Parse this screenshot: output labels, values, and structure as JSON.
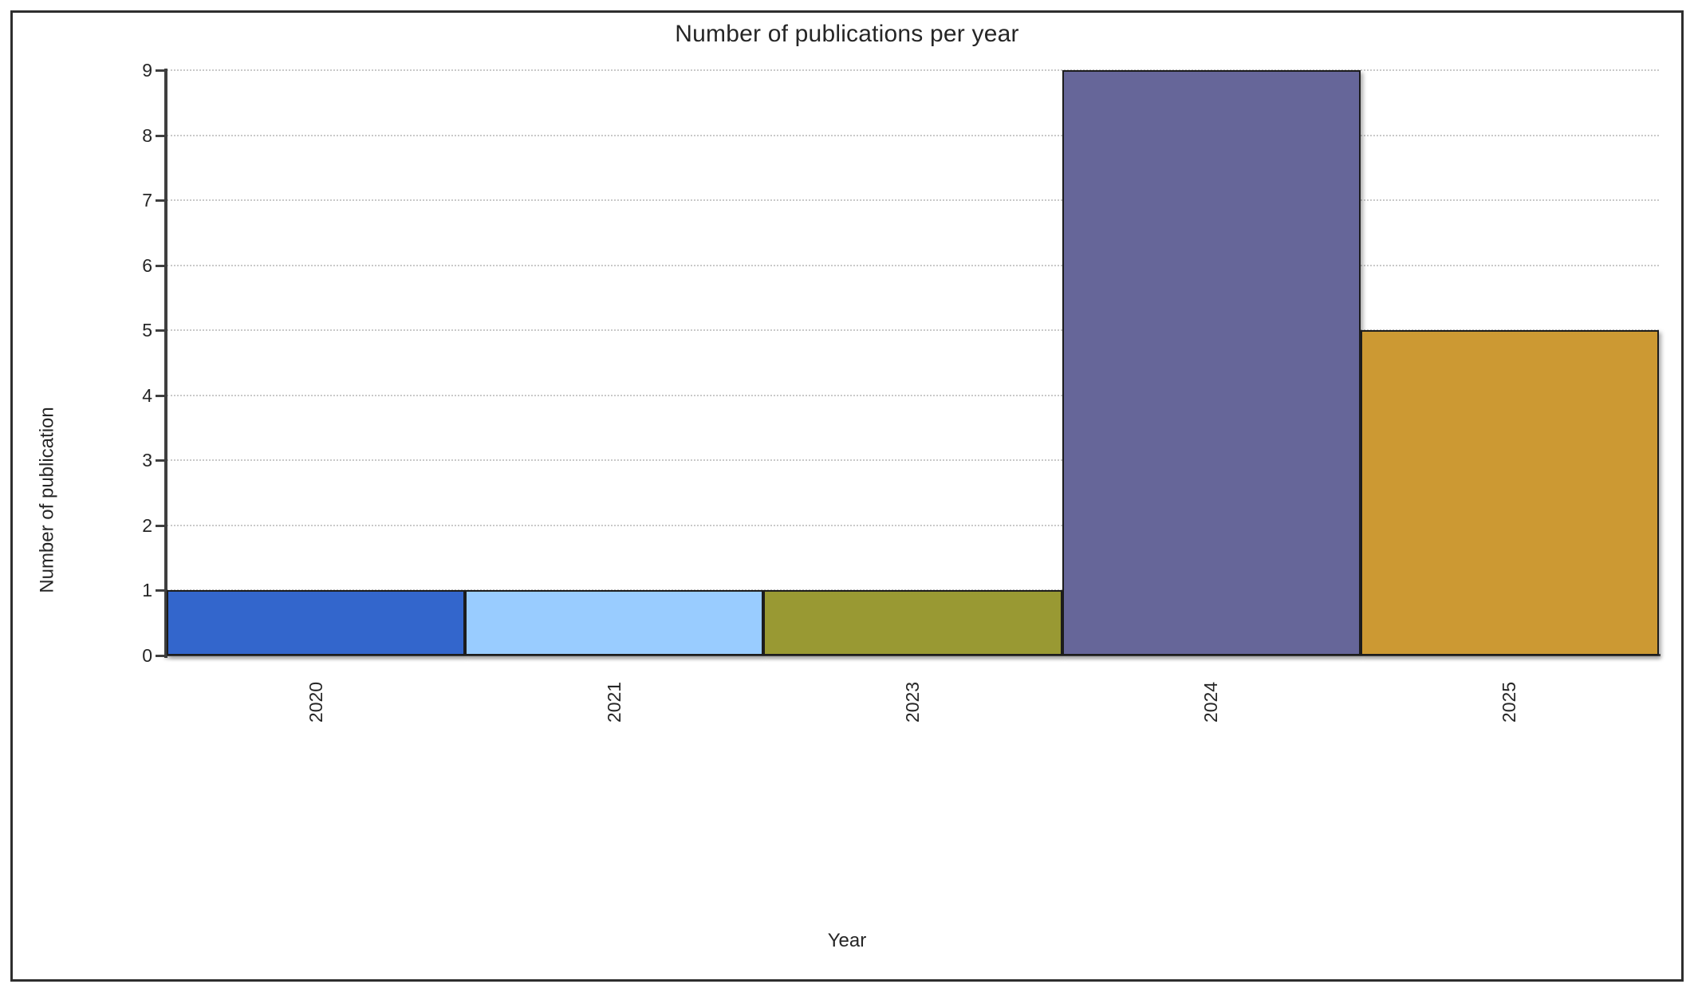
{
  "chart_data": {
    "type": "bar",
    "title": "Number of publications per year",
    "xlabel": "Year",
    "ylabel": "Number of publication",
    "categories": [
      "2020",
      "2021",
      "2023",
      "2024",
      "2025"
    ],
    "values": [
      1,
      1,
      1,
      9,
      5
    ],
    "bar_colors": [
      "#3366CC",
      "#99CCFF",
      "#999933",
      "#666699",
      "#CC9933"
    ],
    "ylim": [
      0,
      9
    ],
    "yticks": [
      0,
      1,
      2,
      3,
      4,
      5,
      6,
      7,
      8,
      9
    ],
    "grid": "horizontal-dotted",
    "legend": "none",
    "gridline_color": "#c9c9c9",
    "axis_color": "#3f3f3f",
    "bar_border_color": "#1c1c1c",
    "text_color": "#262626"
  }
}
